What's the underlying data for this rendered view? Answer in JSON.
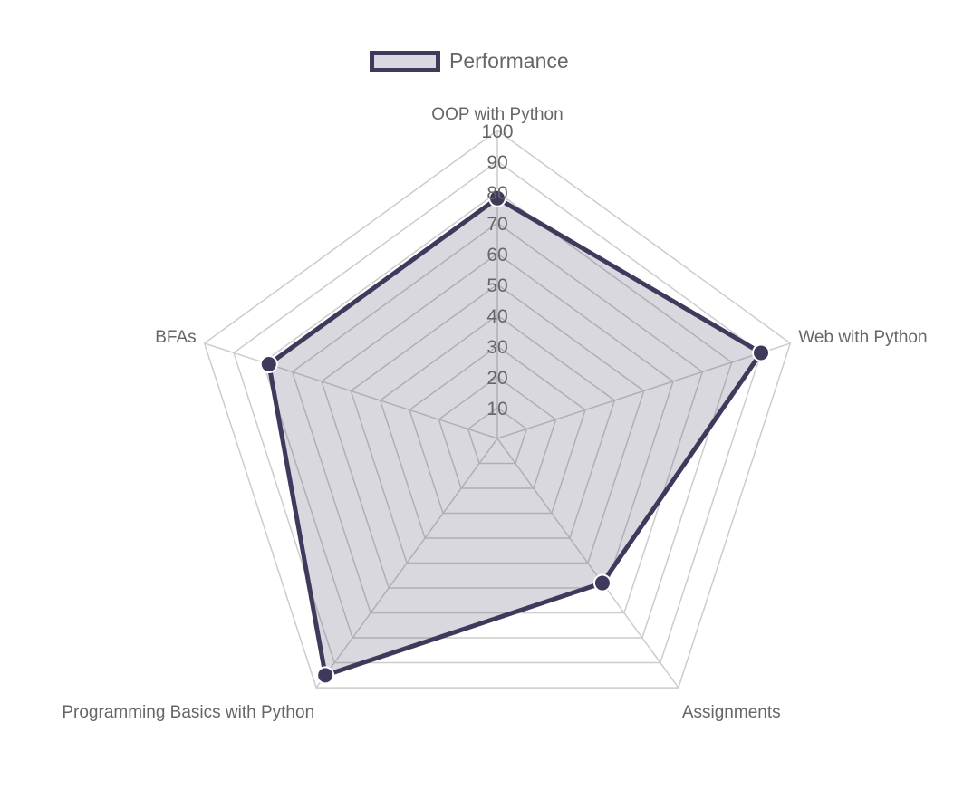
{
  "chart_data": {
    "type": "radar",
    "title": "",
    "categories": [
      "OOP with Python",
      "Web with Python",
      "Assignments",
      "Programming Basics with Python",
      "BFAs"
    ],
    "series": [
      {
        "name": "Performance",
        "values": [
          78,
          90,
          58,
          95,
          78
        ]
      }
    ],
    "r_range": [
      0,
      100
    ],
    "ticks": [
      10,
      20,
      30,
      40,
      50,
      60,
      70,
      80,
      90,
      100
    ],
    "grid": true,
    "legend_position": "top"
  },
  "legend": {
    "items": [
      {
        "label": "Performance"
      }
    ]
  },
  "colors": {
    "series_line": "#3f3a5c",
    "series_fill": "rgba(63,58,92,0.2)",
    "grid": "#cccccc",
    "text": "#666666",
    "point_border": "#ffffff"
  }
}
